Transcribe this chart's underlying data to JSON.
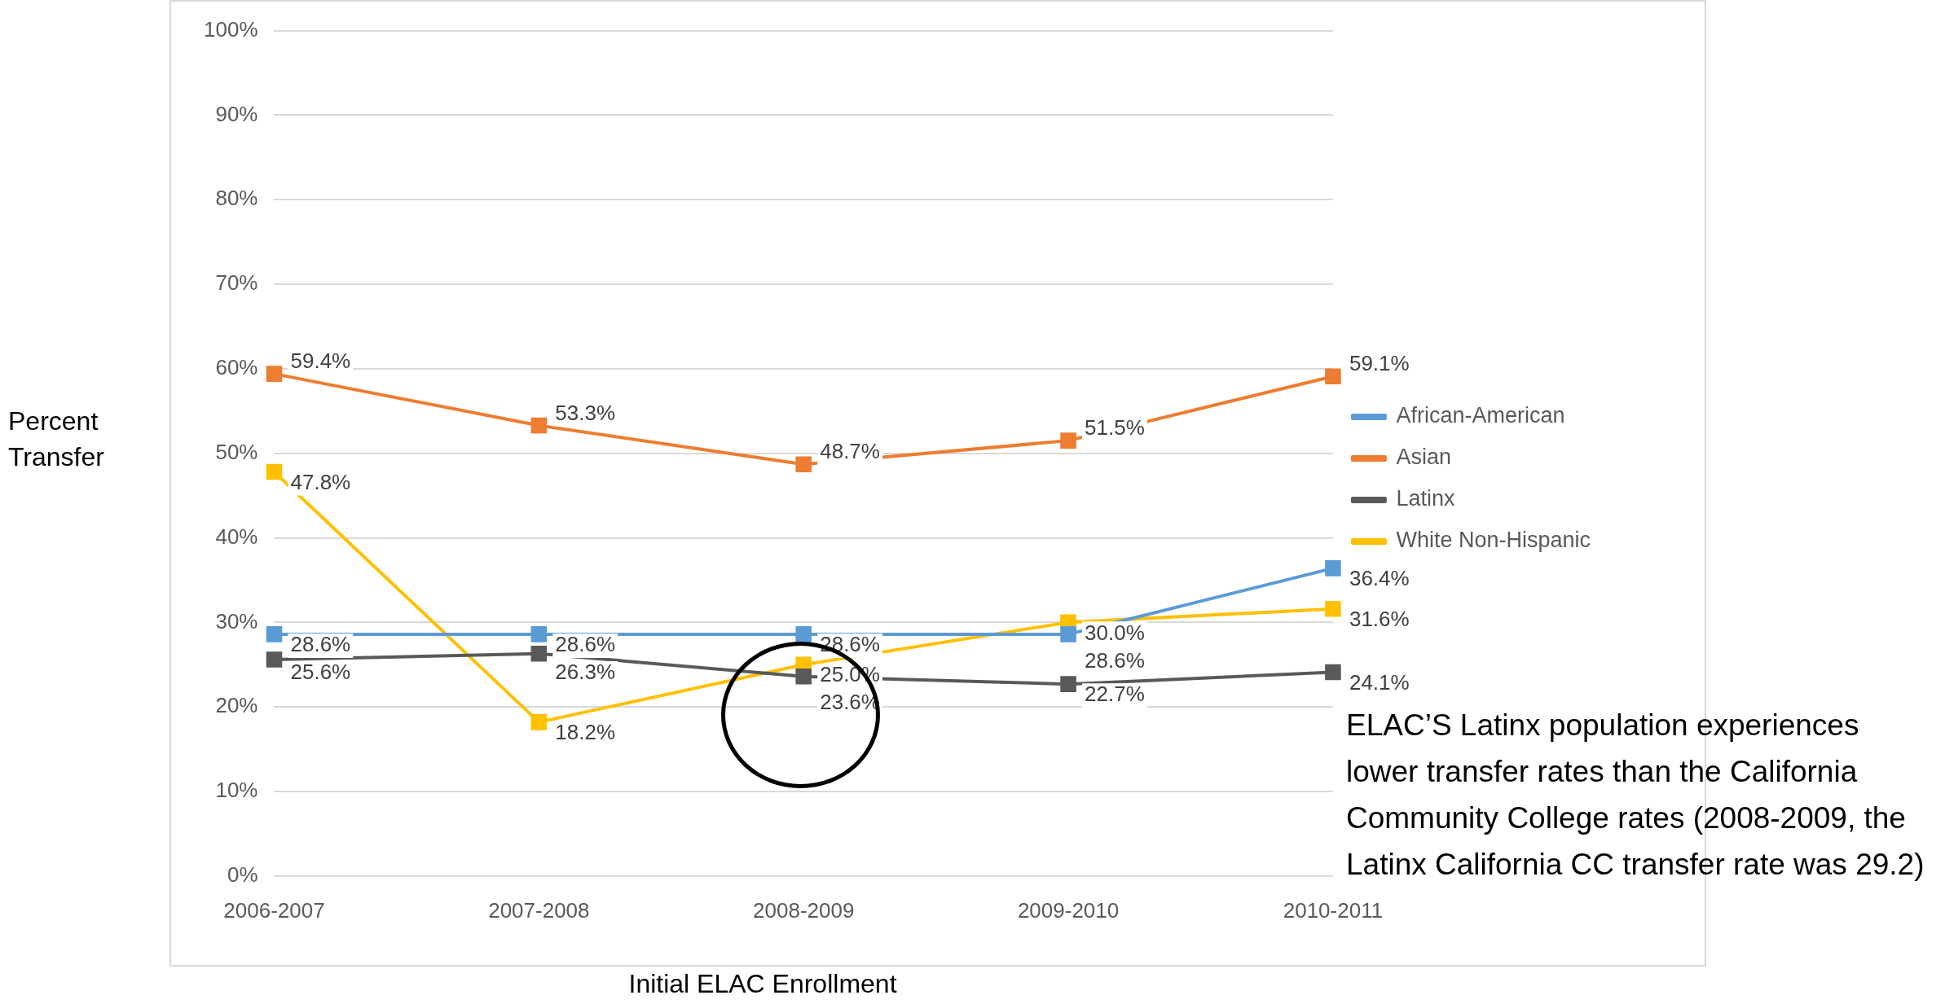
{
  "chart_data": {
    "type": "line",
    "xlabel": "Initial ELAC Enrollment",
    "ylabel": "Percent Transfer",
    "categories": [
      "2006-2007",
      "2007-2008",
      "2008-2009",
      "2009-2010",
      "2010-2011"
    ],
    "series": [
      {
        "name": "African-American",
        "color": "#5b9bd5",
        "values": [
          28.6,
          28.6,
          28.6,
          28.6,
          36.4
        ],
        "value_labels": [
          "28.6%",
          "28.6%",
          "28.6%",
          "28.6%",
          "36.4%"
        ]
      },
      {
        "name": "Asian",
        "color": "#ed7d31",
        "values": [
          59.4,
          53.3,
          48.7,
          51.5,
          59.1
        ],
        "value_labels": [
          "59.4%",
          "53.3%",
          "48.7%",
          "51.5%",
          "59.1%"
        ]
      },
      {
        "name": "Latinx",
        "color": "#595959",
        "values": [
          25.6,
          26.3,
          23.6,
          22.7,
          24.1
        ],
        "value_labels": [
          "25.6%",
          "26.3%",
          "23.6%",
          "22.7%",
          "24.1%"
        ]
      },
      {
        "name": "White Non-Hispanic",
        "color": "#ffc000",
        "values": [
          47.8,
          18.2,
          25.0,
          30.0,
          31.6
        ],
        "value_labels": [
          "47.8%",
          "18.2%",
          "25.0%",
          "30.0%",
          "31.6%"
        ]
      }
    ],
    "ylim": [
      0,
      100
    ],
    "yticks": [
      {
        "value": 0,
        "label": "0%"
      },
      {
        "value": 10,
        "label": "10%"
      },
      {
        "value": 20,
        "label": "20%"
      },
      {
        "value": 30,
        "label": "30%"
      },
      {
        "value": 40,
        "label": "40%"
      },
      {
        "value": 50,
        "label": "50%"
      },
      {
        "value": 60,
        "label": "60%"
      },
      {
        "value": 70,
        "label": "70%"
      },
      {
        "value": 80,
        "label": "80%"
      },
      {
        "value": 90,
        "label": "90%"
      },
      {
        "value": 100,
        "label": "100%"
      }
    ],
    "grid": "y",
    "legend": "right",
    "marker": "square",
    "line_style": "solid",
    "annotations": [
      "ELAC’S Latinx population experiences lower transfer rates than the California Community College rates (2008-2009, the Latinx California CC transfer rate was 29.2)"
    ]
  }
}
